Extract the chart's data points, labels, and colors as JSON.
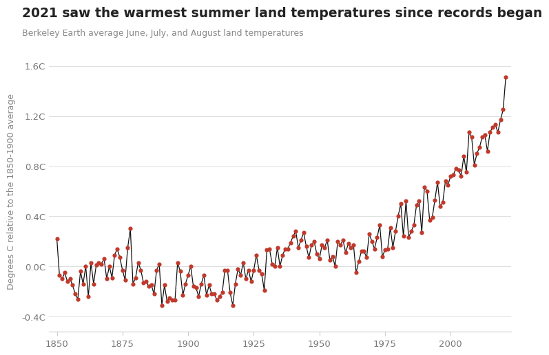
{
  "title": "2021 saw the warmest summer land temperatures since records began",
  "subtitle": "Berkeley Earth average June, July, and August land temperatures",
  "ylabel": "Degrees C relative to the 1850-1900 average",
  "title_color": "#222222",
  "subtitle_color": "#888888",
  "ylabel_color": "#888888",
  "bg_color": "#ffffff",
  "line_color": "#111111",
  "dot_color": "#c0392b",
  "ylim": [
    -0.52,
    1.72
  ],
  "yticks": [
    -0.4,
    0.0,
    0.4,
    0.8,
    1.2,
    1.6
  ],
  "ytick_labels": [
    "-0.4C",
    "0.0C",
    "0.4C",
    "0.8C",
    "1.2C",
    "1.6C"
  ],
  "xticks": [
    1850,
    1875,
    1900,
    1925,
    1950,
    1975,
    2000
  ],
  "years": [
    1850,
    1851,
    1852,
    1853,
    1854,
    1855,
    1856,
    1857,
    1858,
    1859,
    1860,
    1861,
    1862,
    1863,
    1864,
    1865,
    1866,
    1867,
    1868,
    1869,
    1870,
    1871,
    1872,
    1873,
    1874,
    1875,
    1876,
    1877,
    1878,
    1879,
    1880,
    1881,
    1882,
    1883,
    1884,
    1885,
    1886,
    1887,
    1888,
    1889,
    1890,
    1891,
    1892,
    1893,
    1894,
    1895,
    1896,
    1897,
    1898,
    1899,
    1900,
    1901,
    1902,
    1903,
    1904,
    1905,
    1906,
    1907,
    1908,
    1909,
    1910,
    1911,
    1912,
    1913,
    1914,
    1915,
    1916,
    1917,
    1918,
    1919,
    1920,
    1921,
    1922,
    1923,
    1924,
    1925,
    1926,
    1927,
    1928,
    1929,
    1930,
    1931,
    1932,
    1933,
    1934,
    1935,
    1936,
    1937,
    1938,
    1939,
    1940,
    1941,
    1942,
    1943,
    1944,
    1945,
    1946,
    1947,
    1948,
    1949,
    1950,
    1951,
    1952,
    1953,
    1954,
    1955,
    1956,
    1957,
    1958,
    1959,
    1960,
    1961,
    1962,
    1963,
    1964,
    1965,
    1966,
    1967,
    1968,
    1969,
    1970,
    1971,
    1972,
    1973,
    1974,
    1975,
    1976,
    1977,
    1978,
    1979,
    1980,
    1981,
    1982,
    1983,
    1984,
    1985,
    1986,
    1987,
    1988,
    1989,
    1990,
    1991,
    1992,
    1993,
    1994,
    1995,
    1996,
    1997,
    1998,
    1999,
    2000,
    2001,
    2002,
    2003,
    2004,
    2005,
    2006,
    2007,
    2008,
    2009,
    2010,
    2011,
    2012,
    2013,
    2014,
    2015,
    2016,
    2017,
    2018,
    2019,
    2020,
    2021
  ],
  "temps": [
    0.22,
    -0.07,
    -0.1,
    -0.05,
    -0.12,
    -0.1,
    -0.15,
    -0.22,
    -0.26,
    -0.04,
    -0.14,
    0.0,
    -0.24,
    0.03,
    -0.14,
    0.01,
    0.03,
    0.02,
    0.06,
    -0.1,
    0.0,
    -0.09,
    0.09,
    0.14,
    0.07,
    -0.03,
    -0.11,
    0.15,
    0.3,
    -0.14,
    -0.09,
    0.03,
    -0.03,
    -0.13,
    -0.12,
    -0.16,
    -0.15,
    -0.22,
    -0.03,
    0.02,
    -0.31,
    -0.15,
    -0.28,
    -0.25,
    -0.27,
    -0.27,
    0.03,
    -0.04,
    -0.23,
    -0.14,
    -0.07,
    0.0,
    -0.16,
    -0.17,
    -0.24,
    -0.14,
    -0.07,
    -0.23,
    -0.15,
    -0.22,
    -0.22,
    -0.27,
    -0.24,
    -0.21,
    -0.03,
    -0.03,
    -0.21,
    -0.31,
    -0.14,
    -0.02,
    -0.07,
    0.03,
    -0.1,
    -0.03,
    -0.12,
    -0.03,
    0.09,
    -0.03,
    -0.06,
    -0.19,
    0.13,
    0.14,
    0.02,
    0.0,
    0.15,
    0.0,
    0.09,
    0.14,
    0.14,
    0.19,
    0.24,
    0.28,
    0.15,
    0.21,
    0.27,
    0.16,
    0.07,
    0.17,
    0.2,
    0.1,
    0.06,
    0.17,
    0.15,
    0.21,
    0.05,
    0.08,
    0.0,
    0.2,
    0.17,
    0.21,
    0.11,
    0.18,
    0.15,
    0.17,
    -0.05,
    0.04,
    0.12,
    0.12,
    0.07,
    0.26,
    0.2,
    0.14,
    0.23,
    0.33,
    0.08,
    0.13,
    0.14,
    0.31,
    0.15,
    0.28,
    0.4,
    0.5,
    0.24,
    0.52,
    0.23,
    0.28,
    0.33,
    0.49,
    0.52,
    0.27,
    0.63,
    0.6,
    0.37,
    0.39,
    0.53,
    0.67,
    0.48,
    0.51,
    0.68,
    0.65,
    0.72,
    0.73,
    0.78,
    0.77,
    0.72,
    0.88,
    0.75,
    1.07,
    1.03,
    0.81,
    0.9,
    0.95,
    1.03,
    1.05,
    0.92,
    1.07,
    1.11,
    1.13,
    1.07,
    1.17,
    1.25,
    1.51
  ]
}
